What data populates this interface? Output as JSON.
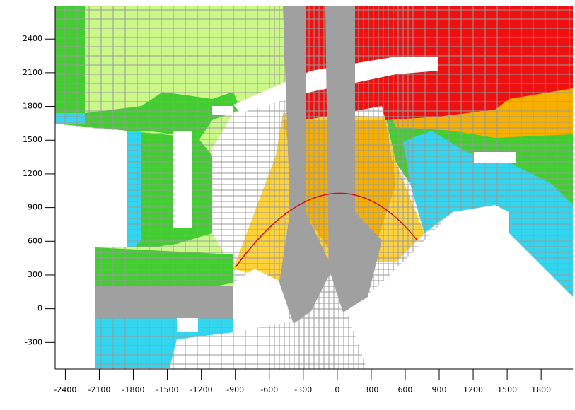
{
  "chart_data": {
    "type": "contour",
    "xlim": [
      -2490,
      2080
    ],
    "ylim": [
      -537,
      2697
    ],
    "xticks": [
      -2400,
      -2100,
      -1800,
      -1500,
      -1200,
      -900,
      -600,
      -300,
      0,
      300,
      600,
      900,
      1200,
      1500,
      1800
    ],
    "yticks": [
      -300,
      0,
      300,
      600,
      900,
      1200,
      1500,
      1800,
      2100,
      2400
    ]
  }
}
